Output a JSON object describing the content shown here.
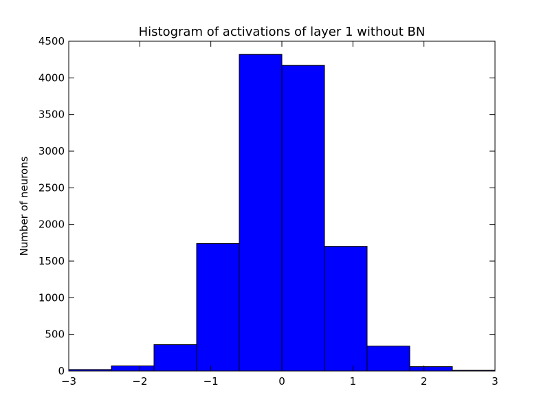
{
  "chart_data": {
    "type": "bar",
    "title": "Histogram of activations of layer 1  without BN",
    "xlabel": "",
    "ylabel": "Number of neurons",
    "bin_edges": [
      -3,
      -2.4,
      -1.8,
      -1.2,
      -0.6,
      0,
      0.6,
      1.2,
      1.8,
      2.4,
      3
    ],
    "values": [
      20,
      70,
      360,
      1740,
      4320,
      4170,
      1700,
      340,
      60,
      10
    ],
    "xlim": [
      -3,
      3
    ],
    "ylim": [
      0,
      4500
    ],
    "x_ticks": [
      -3,
      -2,
      -1,
      0,
      1,
      2,
      3
    ],
    "x_tick_labels": [
      "−3",
      "−2",
      "−1",
      "0",
      "1",
      "2",
      "3"
    ],
    "y_ticks": [
      0,
      500,
      1000,
      1500,
      2000,
      2500,
      3000,
      3500,
      4000,
      4500
    ],
    "y_tick_labels": [
      "0",
      "500",
      "1000",
      "1500",
      "2000",
      "2500",
      "3000",
      "3500",
      "4000",
      "4500"
    ],
    "bar_color": "#0000ff",
    "edge_color": "#000000",
    "grid": false,
    "legend": false
  }
}
